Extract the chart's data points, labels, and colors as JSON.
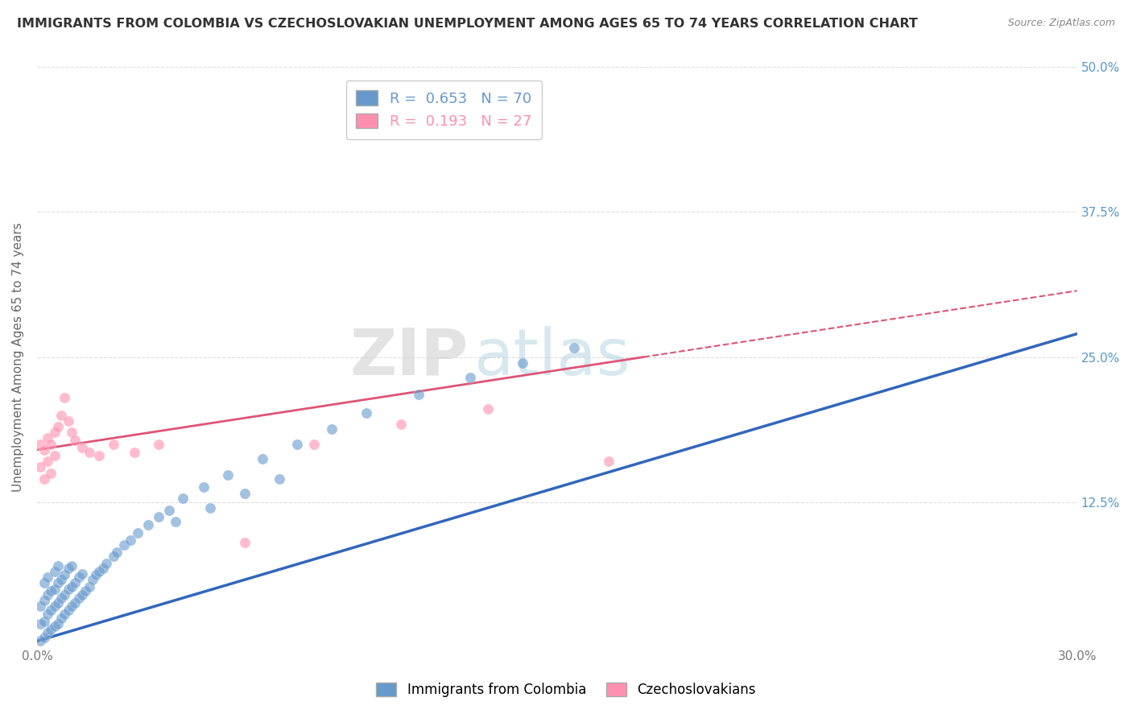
{
  "title": "IMMIGRANTS FROM COLOMBIA VS CZECHOSLOVAKIAN UNEMPLOYMENT AMONG AGES 65 TO 74 YEARS CORRELATION CHART",
  "source": "Source: ZipAtlas.com",
  "xlabel_legend1": "Immigrants from Colombia",
  "xlabel_legend2": "Czechoslovakians",
  "ylabel": "Unemployment Among Ages 65 to 74 years",
  "r1": 0.653,
  "n1": 70,
  "r2": 0.193,
  "n2": 27,
  "xlim": [
    0.0,
    0.3
  ],
  "ylim": [
    0.0,
    0.5
  ],
  "xticks": [
    0.0,
    0.05,
    0.1,
    0.15,
    0.2,
    0.25,
    0.3
  ],
  "yticks": [
    0.0,
    0.125,
    0.25,
    0.375,
    0.5
  ],
  "xtick_labels": [
    "0.0%",
    "",
    "",
    "",
    "",
    "",
    "30.0%"
  ],
  "ytick_labels_left": [
    "",
    "",
    "",
    "",
    ""
  ],
  "ytick_labels_right": [
    "",
    "12.5%",
    "25.0%",
    "37.5%",
    "50.0%"
  ],
  "color_blue": "#6699CC",
  "color_pink": "#FF8FAF",
  "background_color": "#FFFFFF",
  "watermark_zip": "ZIP",
  "watermark_atlas": "atlas",
  "blue_trend": [
    0.005,
    0.27
  ],
  "pink_trend_solid": [
    0.17,
    0.25
  ],
  "pink_trend_dash_end": 0.3,
  "blue_scatter_x": [
    0.001,
    0.001,
    0.001,
    0.002,
    0.002,
    0.002,
    0.002,
    0.003,
    0.003,
    0.003,
    0.003,
    0.004,
    0.004,
    0.004,
    0.005,
    0.005,
    0.005,
    0.005,
    0.006,
    0.006,
    0.006,
    0.006,
    0.007,
    0.007,
    0.007,
    0.008,
    0.008,
    0.008,
    0.009,
    0.009,
    0.009,
    0.01,
    0.01,
    0.01,
    0.011,
    0.011,
    0.012,
    0.012,
    0.013,
    0.013,
    0.014,
    0.015,
    0.016,
    0.017,
    0.018,
    0.019,
    0.02,
    0.022,
    0.023,
    0.025,
    0.027,
    0.029,
    0.032,
    0.035,
    0.038,
    0.042,
    0.048,
    0.055,
    0.065,
    0.075,
    0.085,
    0.095,
    0.11,
    0.125,
    0.14,
    0.155,
    0.04,
    0.05,
    0.06,
    0.07
  ],
  "blue_scatter_y": [
    0.005,
    0.02,
    0.035,
    0.008,
    0.022,
    0.04,
    0.055,
    0.012,
    0.028,
    0.045,
    0.06,
    0.015,
    0.032,
    0.048,
    0.018,
    0.035,
    0.05,
    0.065,
    0.02,
    0.038,
    0.055,
    0.07,
    0.025,
    0.042,
    0.058,
    0.028,
    0.045,
    0.062,
    0.032,
    0.05,
    0.068,
    0.035,
    0.052,
    0.07,
    0.038,
    0.055,
    0.042,
    0.06,
    0.045,
    0.063,
    0.048,
    0.052,
    0.058,
    0.062,
    0.065,
    0.068,
    0.072,
    0.078,
    0.082,
    0.088,
    0.092,
    0.098,
    0.105,
    0.112,
    0.118,
    0.128,
    0.138,
    0.148,
    0.162,
    0.175,
    0.188,
    0.202,
    0.218,
    0.232,
    0.245,
    0.258,
    0.108,
    0.12,
    0.132,
    0.145
  ],
  "pink_scatter_x": [
    0.001,
    0.001,
    0.002,
    0.002,
    0.003,
    0.003,
    0.004,
    0.004,
    0.005,
    0.005,
    0.006,
    0.007,
    0.008,
    0.009,
    0.01,
    0.011,
    0.013,
    0.015,
    0.018,
    0.022,
    0.028,
    0.035,
    0.06,
    0.08,
    0.105,
    0.13,
    0.165
  ],
  "pink_scatter_y": [
    0.155,
    0.175,
    0.145,
    0.17,
    0.16,
    0.18,
    0.15,
    0.175,
    0.165,
    0.185,
    0.19,
    0.2,
    0.215,
    0.195,
    0.185,
    0.178,
    0.172,
    0.168,
    0.165,
    0.175,
    0.168,
    0.175,
    0.09,
    0.175,
    0.192,
    0.205,
    0.16
  ]
}
